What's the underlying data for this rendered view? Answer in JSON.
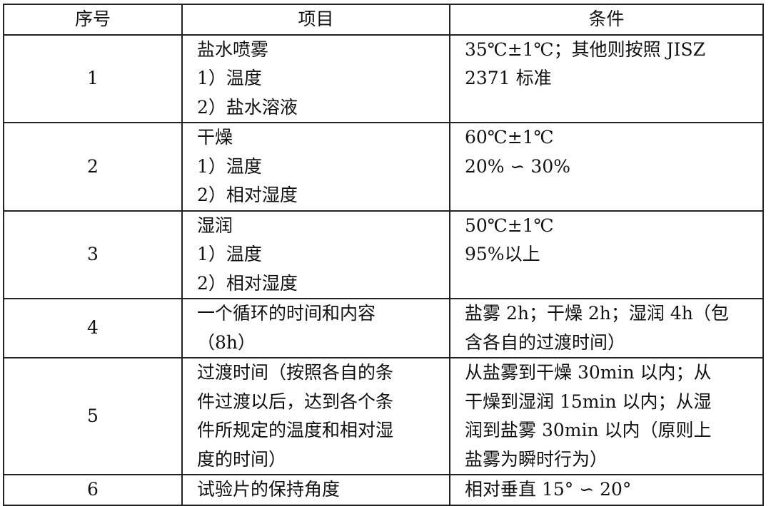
{
  "headers": [
    "序号",
    "项目",
    "条件"
  ],
  "rows": [
    {
      "no": "1",
      "item": [
        "盐水喷雾",
        "1）温度",
        "2）盐水溶液"
      ],
      "cond": [
        "35℃±1℃；其他则按照 JISZ",
        "2371 标准"
      ]
    },
    {
      "no": "2",
      "item": [
        "干燥",
        "1）温度",
        "2）相对湿度"
      ],
      "cond": [
        "60℃±1℃",
        "20% ∽ 30%"
      ]
    },
    {
      "no": "3",
      "item": [
        "湿润",
        "1）温度",
        "2）相对湿度"
      ],
      "cond": [
        "50℃±1℃",
        "95%以上"
      ]
    },
    {
      "no": "4",
      "item": [
        "一个循环的时间和内容",
        "（8h）"
      ],
      "cond": [
        "盐雾 2h；干燥 2h；湿润 4h（包",
        "含各自的过渡时间）"
      ]
    },
    {
      "no": "5",
      "item": [
        "过渡时间（按照各自的条",
        "件过渡以后，达到各个条",
        "件所规定的温度和相对湿",
        "度的时间）"
      ],
      "cond": [
        "从盐雾到干燥 30min 以内；从",
        "干燥到湿润 15min 以内；从湿",
        "润到盐雾 30min 以内（原则上",
        "盐雾为瞬时行为）"
      ]
    },
    {
      "no": "6",
      "item": [
        "试验片的保持角度"
      ],
      "cond": [
        "相对垂直 15° ∽ 20°"
      ]
    }
  ]
}
